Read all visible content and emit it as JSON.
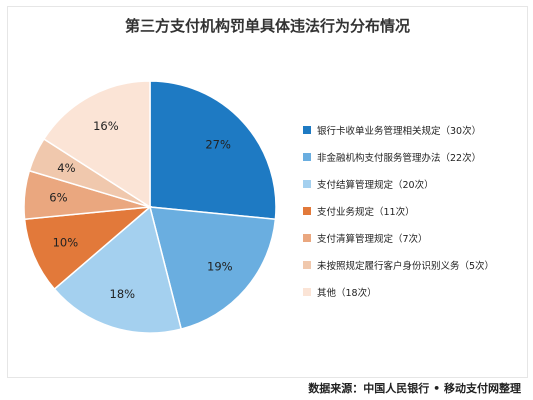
{
  "chart_data": {
    "type": "pie",
    "title": "第三方支付机构罚单具体违法行为分布情况",
    "slices": [
      {
        "legend": "银行卡收单业务管理相关规定（30次）",
        "count": 30,
        "percent_label": "27%",
        "color": "#1e7ac3"
      },
      {
        "legend": "非金融机构支付服务管理办法（22次）",
        "count": 22,
        "percent_label": "19%",
        "color": "#6aaee0"
      },
      {
        "legend": "支付结算管理规定（20次）",
        "count": 20,
        "percent_label": "18%",
        "color": "#a4d0ef"
      },
      {
        "legend": "支付业务规定（11次）",
        "count": 11,
        "percent_label": "10%",
        "color": "#e2793a"
      },
      {
        "legend": "支付清算管理规定（7次）",
        "count": 7,
        "percent_label": "6%",
        "color": "#eaa77f"
      },
      {
        "legend": "未按照规定履行客户身份识别义务（5次）",
        "count": 5,
        "percent_label": "4%",
        "color": "#f0c8ad"
      },
      {
        "legend": "其他（18次）",
        "count": 18,
        "percent_label": "16%",
        "color": "#fbe4d6"
      }
    ],
    "legend_position": "right"
  },
  "source": "数据来源：中国人民银行 • 移动支付网整理"
}
